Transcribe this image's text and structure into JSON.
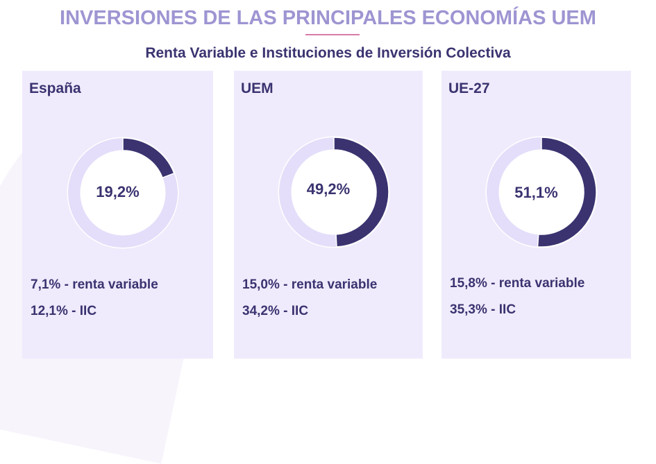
{
  "title": "INVERSIONES DE LAS PRINCIPALES ECONOMÍAS UEM",
  "subtitle": "Renta Variable e Instituciones de Inversión Colectiva",
  "colors": {
    "filled": "#3a3370",
    "track": "#e4defa",
    "panel": "#f0ecfb",
    "title": "#9d95d2"
  },
  "chart_data": [
    {
      "type": "pie",
      "name": "España",
      "value": 19.2,
      "label": "19,2%",
      "lines": [
        "7,1% - renta variable",
        "12,1% - IIC"
      ]
    },
    {
      "type": "pie",
      "name": "UEM",
      "value": 49.2,
      "label": "49,2%",
      "lines": [
        "15,0% - renta variable",
        "34,2% - IIC"
      ]
    },
    {
      "type": "pie",
      "name": "UE-27",
      "value": 51.1,
      "label": "51,1%",
      "lines": [
        "15,8% - renta variable",
        "35,3% - IIC"
      ]
    }
  ]
}
